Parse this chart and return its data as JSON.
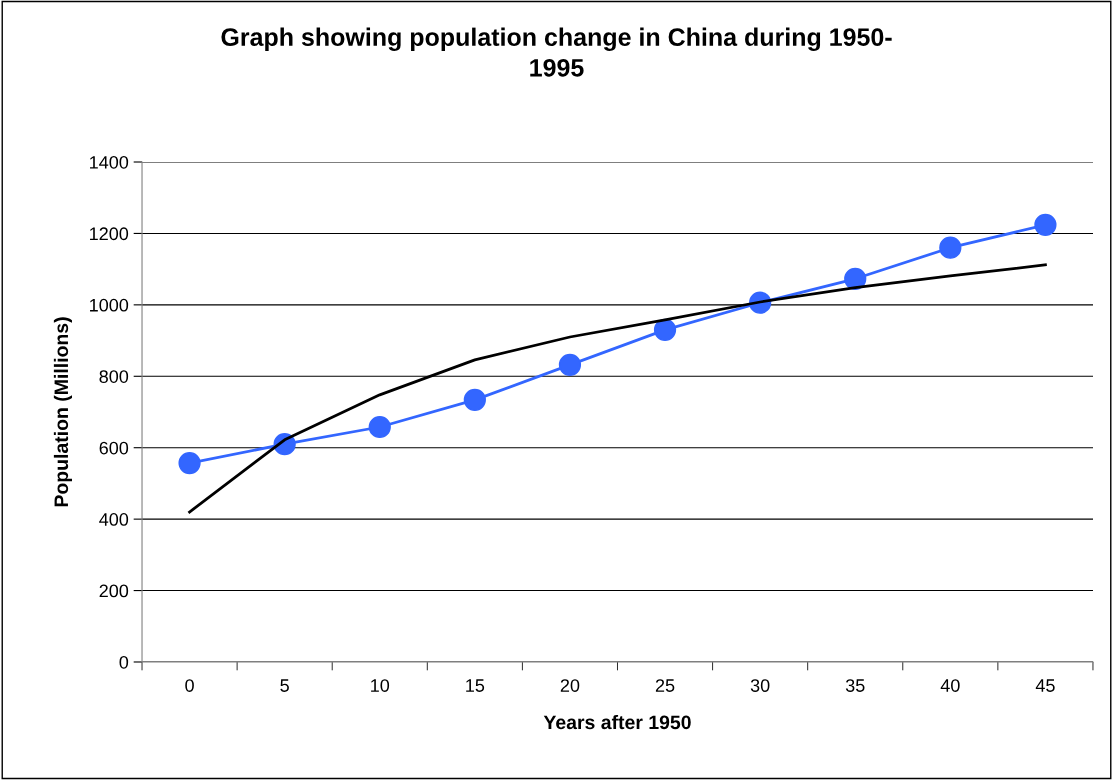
{
  "chart_data": {
    "type": "line",
    "title": "Graph showing population change in China during 1950-\n1995",
    "xlabel": "Years after 1950",
    "ylabel": "Population (Millions)",
    "categories": [
      "0",
      "5",
      "10",
      "15",
      "20",
      "25",
      "30",
      "35",
      "40",
      "45"
    ],
    "series": [
      {
        "color": "#3366ff",
        "marker": "circle",
        "values": [
          557,
          610,
          658,
          734,
          832,
          930,
          1006,
          1073,
          1160,
          1224
        ]
      },
      {
        "color": "#000000",
        "marker": "none",
        "values": [
          420,
          622,
          748,
          846,
          910,
          958,
          1008,
          1048,
          1081,
          1112
        ]
      }
    ],
    "ylim": [
      0,
      1400
    ],
    "yticks": [
      0,
      200,
      400,
      600,
      800,
      1000,
      1200,
      1400
    ],
    "grid": "y",
    "legend": false
  }
}
